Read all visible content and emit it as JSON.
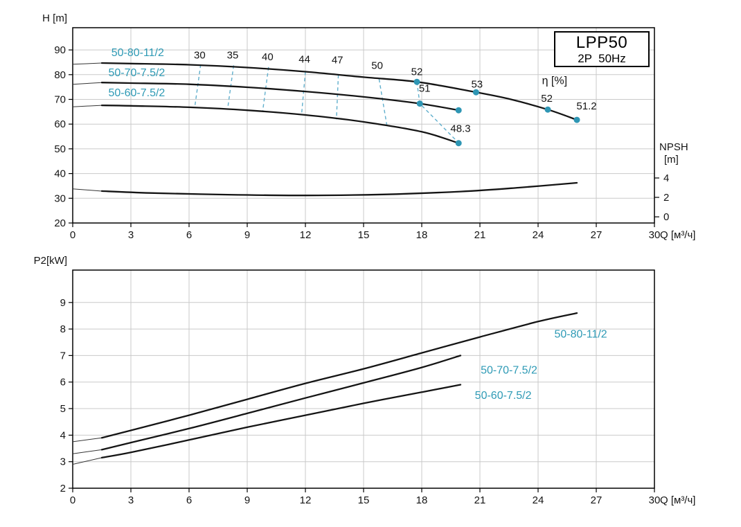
{
  "colors": {
    "accent": "#2E9AB5",
    "curve": "#141414",
    "grid": "#c9c9c9",
    "dashed": "#5FAECC",
    "dot": "#2E96B4",
    "frame": "#000000",
    "text": "#141414"
  },
  "title_box": {
    "line1": "LPP50",
    "line2": "2P  50Hz"
  },
  "chart_data": [
    {
      "id": "head",
      "type": "line",
      "ylabel": "H [m]",
      "xlabel": "Q [м³/ч]",
      "xlim": [
        0,
        30
      ],
      "ylim": [
        20,
        99
      ],
      "xticks": [
        0,
        3,
        6,
        9,
        12,
        15,
        18,
        21,
        24,
        27,
        30
      ],
      "yticks": [
        20,
        30,
        40,
        50,
        60,
        70,
        80,
        90
      ],
      "grid": true,
      "series": [
        {
          "name": "50-80-11/2",
          "points": [
            [
              1.5,
              84.7
            ],
            [
              3,
              84.5
            ],
            [
              6,
              84.0
            ],
            [
              9,
              82.9
            ],
            [
              12,
              81.2
            ],
            [
              15,
              79.0
            ],
            [
              17.75,
              77.1
            ],
            [
              20.8,
              72.9
            ],
            [
              22.6,
              70.0
            ],
            [
              24.5,
              65.9
            ],
            [
              26,
              61.7
            ]
          ]
        },
        {
          "name": "50-70-7.5/2",
          "points": [
            [
              1.5,
              76.8
            ],
            [
              3,
              76.6
            ],
            [
              6,
              76.1
            ],
            [
              9,
              74.9
            ],
            [
              12,
              73.2
            ],
            [
              15,
              71.0
            ],
            [
              17.9,
              68.3
            ],
            [
              19.9,
              65.6
            ]
          ]
        },
        {
          "name": "50-60-7.5/2",
          "points": [
            [
              1.5,
              67.6
            ],
            [
              3,
              67.4
            ],
            [
              6,
              66.8
            ],
            [
              9,
              65.6
            ],
            [
              12,
              63.7
            ],
            [
              15,
              60.9
            ],
            [
              18,
              56.9
            ],
            [
              19.9,
              52.3
            ]
          ]
        },
        {
          "name": "NPSH",
          "axis": "npsh",
          "points": [
            [
              1.5,
              2.65
            ],
            [
              4,
              2.45
            ],
            [
              8,
              2.28
            ],
            [
              12,
              2.2
            ],
            [
              16,
              2.3
            ],
            [
              20,
              2.6
            ],
            [
              23,
              3.0
            ],
            [
              26,
              3.5
            ]
          ]
        }
      ],
      "series_labels": [
        {
          "text": "50-80-11/2",
          "x": 3.35,
          "y": 88.9,
          "color": "accent"
        },
        {
          "text": "50-70-7.5/2",
          "x": 3.3,
          "y": 80.8,
          "color": "accent"
        },
        {
          "text": "50-60-7.5/2",
          "x": 3.3,
          "y": 72.7,
          "color": "accent"
        }
      ],
      "npsh_axis": {
        "title_line1": "NPSH",
        "title_line2": "[m]",
        "ticks": [
          4,
          2,
          0
        ],
        "h_at_zero": 22.5,
        "h_per_unit": 3.93
      },
      "efficiency": {
        "axis_label": "η [%]",
        "axis_label_pos": [
          24.85,
          77.6
        ],
        "labels": [
          {
            "text": "30",
            "x": 6.55,
            "y": 88.0
          },
          {
            "text": "35",
            "x": 8.25,
            "y": 88.0
          },
          {
            "text": "40",
            "x": 10.05,
            "y": 87.2
          },
          {
            "text": "44",
            "x": 11.95,
            "y": 86.3
          },
          {
            "text": "47",
            "x": 13.65,
            "y": 86.0
          },
          {
            "text": "50",
            "x": 15.7,
            "y": 83.7
          },
          {
            "text": "52",
            "x": 17.75,
            "y": 81.2
          },
          {
            "text": "53",
            "x": 20.85,
            "y": 76.1
          },
          {
            "text": "52",
            "x": 24.45,
            "y": 70.4
          },
          {
            "text": "51.2",
            "x": 26.5,
            "y": 67.4
          },
          {
            "text": "51",
            "x": 18.15,
            "y": 74.5
          },
          {
            "text": "48.3",
            "x": 20.0,
            "y": 58.2
          }
        ],
        "dashed_lines": [
          [
            [
              6.6,
              84.1
            ],
            [
              6.3,
              67.2
            ]
          ],
          [
            [
              8.3,
              83.8
            ],
            [
              8.0,
              66.8
            ]
          ],
          [
            [
              10.1,
              83.1
            ],
            [
              9.8,
              65.4
            ]
          ],
          [
            [
              12.0,
              81.2
            ],
            [
              11.8,
              63.7
            ]
          ],
          [
            [
              13.7,
              79.9
            ],
            [
              13.6,
              61.9
            ]
          ],
          [
            [
              15.8,
              78.2
            ],
            [
              16.2,
              59.6
            ]
          ],
          [
            [
              17.75,
              77.1
            ],
            [
              17.9,
              68.3
            ],
            [
              19.85,
              52.8
            ]
          ]
        ],
        "dots": [
          [
            17.75,
            77.1
          ],
          [
            20.8,
            72.9
          ],
          [
            24.5,
            65.9
          ],
          [
            26,
            61.7
          ],
          [
            17.9,
            68.3
          ],
          [
            19.9,
            65.6
          ],
          [
            19.9,
            52.3
          ]
        ]
      },
      "leaders": [
        [
          [
            0,
            84.2
          ],
          [
            1.5,
            84.7
          ]
        ],
        [
          [
            0,
            76.1
          ],
          [
            1.5,
            76.8
          ]
        ],
        [
          [
            0,
            67.0
          ],
          [
            1.5,
            67.6
          ]
        ],
        [
          [
            0,
            33.8
          ],
          [
            1.5,
            32.9
          ]
        ]
      ]
    },
    {
      "id": "power",
      "type": "line",
      "ylabel": "P2[kW]",
      "xlabel": "Q [м³/ч]",
      "xlim": [
        0,
        30
      ],
      "ylim": [
        2,
        10.22
      ],
      "xticks": [
        0,
        3,
        6,
        9,
        12,
        15,
        18,
        21,
        24,
        27,
        30
      ],
      "yticks": [
        2,
        3,
        4,
        5,
        6,
        7,
        8,
        9
      ],
      "grid": true,
      "series": [
        {
          "name": "50-80-11/2",
          "points": [
            [
              1.5,
              3.9
            ],
            [
              3,
              4.18
            ],
            [
              6,
              4.75
            ],
            [
              9,
              5.35
            ],
            [
              12,
              5.95
            ],
            [
              15,
              6.5
            ],
            [
              18,
              7.1
            ],
            [
              21,
              7.7
            ],
            [
              24,
              8.28
            ],
            [
              26,
              8.6
            ]
          ]
        },
        {
          "name": "50-70-7.5/2",
          "points": [
            [
              1.5,
              3.45
            ],
            [
              3,
              3.72
            ],
            [
              6,
              4.25
            ],
            [
              9,
              4.82
            ],
            [
              12,
              5.4
            ],
            [
              15,
              5.97
            ],
            [
              18,
              6.55
            ],
            [
              20,
              7.0
            ]
          ]
        },
        {
          "name": "50-60-7.5/2",
          "points": [
            [
              1.5,
              3.15
            ],
            [
              3,
              3.35
            ],
            [
              6,
              3.82
            ],
            [
              9,
              4.3
            ],
            [
              12,
              4.75
            ],
            [
              15,
              5.2
            ],
            [
              18,
              5.62
            ],
            [
              20,
              5.9
            ]
          ]
        }
      ],
      "series_labels": [
        {
          "text": "50-80-11/2",
          "x": 26.2,
          "y": 7.8,
          "color": "accent"
        },
        {
          "text": "50-70-7.5/2",
          "x": 22.5,
          "y": 6.45,
          "color": "accent"
        },
        {
          "text": "50-60-7.5/2",
          "x": 22.2,
          "y": 5.5,
          "color": "accent"
        }
      ],
      "leaders": [
        [
          [
            0,
            3.75
          ],
          [
            1.5,
            3.9
          ]
        ],
        [
          [
            0,
            3.3
          ],
          [
            1.5,
            3.45
          ]
        ],
        [
          [
            0,
            2.9
          ],
          [
            1.5,
            3.15
          ]
        ]
      ]
    }
  ]
}
